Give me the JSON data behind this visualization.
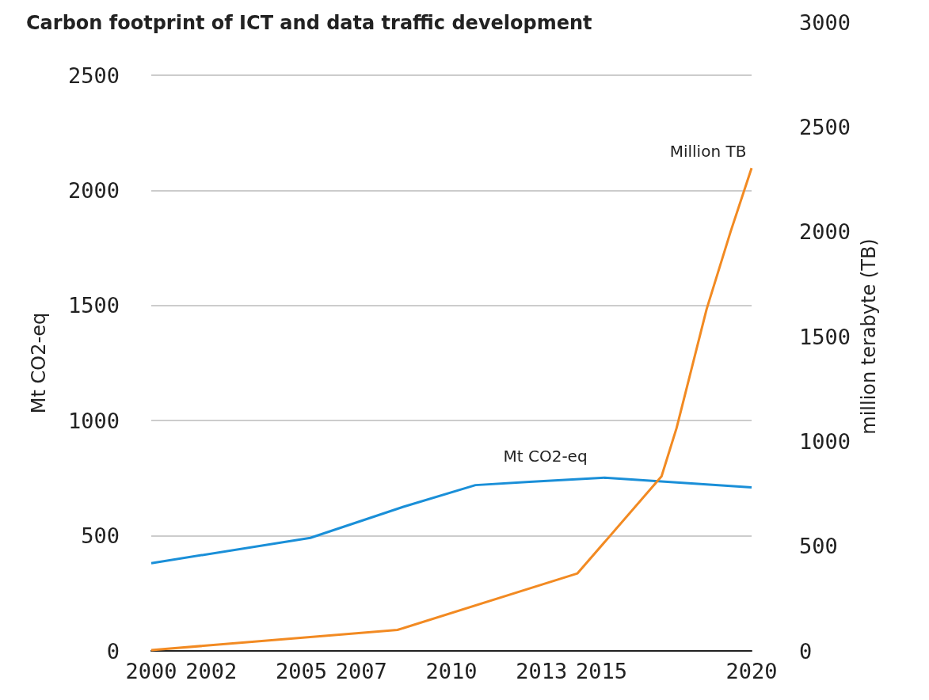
{
  "chart_data": {
    "type": "line",
    "title": "Carbon footprint of ICT and data traffic development",
    "ylabel": "Mt CO2-eq",
    "y2label": "million terabyte (TB)",
    "xlim": [
      2000,
      2020
    ],
    "xticks": [
      2000,
      2002,
      2005,
      2007,
      2010,
      2013,
      2015,
      2020
    ],
    "ylim": [
      0,
      2500
    ],
    "yticks": [
      0,
      500,
      1000,
      1500,
      2000,
      2500
    ],
    "y2lim": [
      0,
      3000
    ],
    "y2ticks": [
      0,
      500,
      1000,
      1500,
      2000,
      2500,
      3000
    ],
    "grid": "y",
    "marker": "none",
    "series": [
      {
        "name": "Mt CO2-eq",
        "color": "#1a8fd8",
        "x": [
          2000,
          2005.3,
          2008.4,
          2010.8,
          2012.6,
          2015.1,
          2020
        ],
        "values": [
          381,
          491,
          626,
          720,
          734,
          752,
          710
        ]
      },
      {
        "name": "Million TB",
        "color": "#f28a22",
        "axis": "y2",
        "x": [
          2000,
          2008.2,
          2014.2,
          2017.0,
          2017.5,
          2018.5,
          2019.3,
          2020
        ],
        "values": [
          4,
          100,
          370,
          833,
          1063,
          1630,
          2000,
          2304
        ]
      }
    ]
  }
}
